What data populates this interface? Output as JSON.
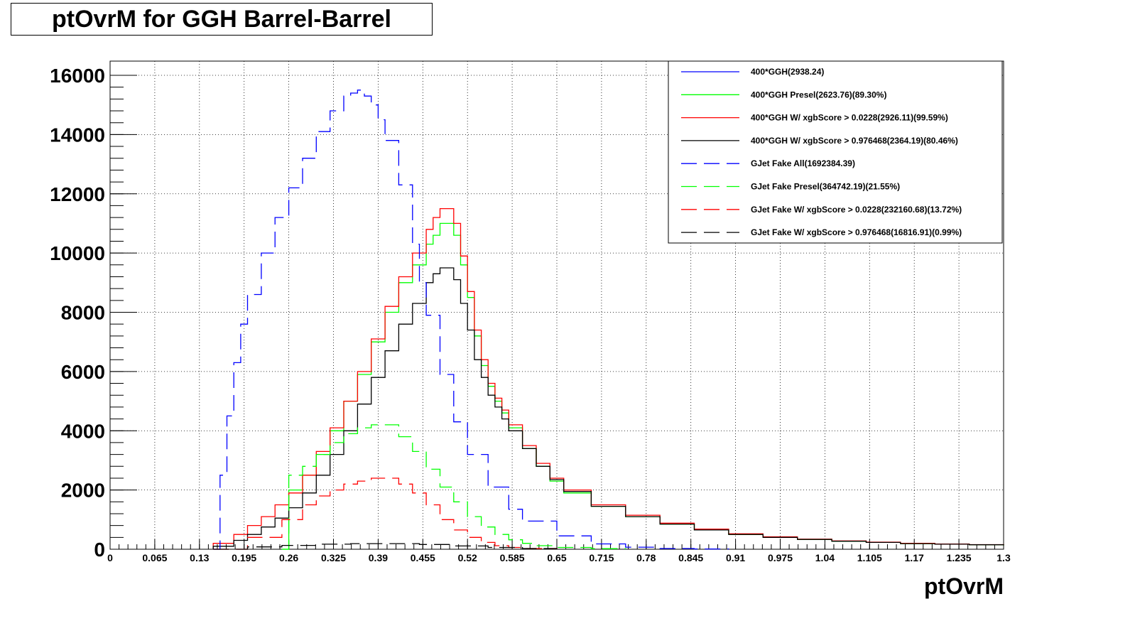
{
  "title": "ptOvrM for GGH Barrel-Barrel",
  "chart_data": {
    "type": "line",
    "title": "ptOvrM for GGH Barrel-Barrel",
    "xlabel": "ptOvrM",
    "ylabel": "",
    "xlim": [
      0,
      1.3
    ],
    "ylim": [
      0,
      16000
    ],
    "grid": true,
    "legend_position": "top-right",
    "x_ticks": [
      "0",
      "0.065",
      "0.13",
      "0.195",
      "0.26",
      "0.325",
      "0.39",
      "0.455",
      "0.52",
      "0.585",
      "0.65",
      "0.715",
      "0.78",
      "0.845",
      "0.91",
      "0.975",
      "1.04",
      "1.105",
      "1.17",
      "1.235",
      "1.3"
    ],
    "y_ticks": [
      "0",
      "2000",
      "4000",
      "6000",
      "8000",
      "10000",
      "12000",
      "14000",
      "16000"
    ],
    "series": [
      {
        "name": "400*GGH(2938.24)",
        "color": "#0000ff",
        "dash": "solid",
        "x": [
          0.15,
          0.2,
          0.25,
          0.3,
          0.35,
          0.4,
          0.45,
          0.5,
          0.55,
          0.6,
          0.65,
          0.7,
          0.8,
          0.9,
          1.0,
          1.1,
          1.2,
          1.3
        ],
        "y": [
          0,
          0,
          0,
          0,
          0,
          0,
          0,
          0,
          0,
          0,
          0,
          0,
          0,
          0,
          0,
          0,
          0,
          0
        ],
        "show_line": false
      },
      {
        "name": "400*GGH Presel(2623.76)(89.30%)",
        "color": "#00ff00",
        "dash": "solid",
        "x": [
          0.25,
          0.26,
          0.28,
          0.3,
          0.32,
          0.34,
          0.36,
          0.38,
          0.4,
          0.42,
          0.44,
          0.46,
          0.47,
          0.48,
          0.49,
          0.5,
          0.51,
          0.52,
          0.53,
          0.54,
          0.55,
          0.56,
          0.57,
          0.58,
          0.6,
          0.62,
          0.64,
          0.66,
          0.7,
          0.75,
          0.8,
          0.85,
          0.9,
          0.95,
          1.0,
          1.05,
          1.1,
          1.15,
          1.2,
          1.25,
          1.3
        ],
        "y": [
          0,
          2000,
          2500,
          3200,
          4000,
          5000,
          5900,
          7000,
          8000,
          9000,
          9600,
          10300,
          10600,
          11000,
          11000,
          10600,
          9600,
          8500,
          7200,
          6200,
          5500,
          5000,
          4600,
          4100,
          3400,
          2800,
          2300,
          1900,
          1450,
          1100,
          850,
          650,
          500,
          400,
          330,
          270,
          230,
          190,
          170,
          150,
          130
        ]
      },
      {
        "name": "400*GGH W/ xgbScore > 0.0228(2926.11)(99.59%)",
        "color": "#ff0000",
        "dash": "solid",
        "x": [
          0.15,
          0.18,
          0.2,
          0.22,
          0.24,
          0.26,
          0.28,
          0.3,
          0.32,
          0.34,
          0.36,
          0.38,
          0.4,
          0.42,
          0.44,
          0.46,
          0.47,
          0.48,
          0.49,
          0.5,
          0.51,
          0.52,
          0.53,
          0.54,
          0.55,
          0.56,
          0.57,
          0.58,
          0.6,
          0.62,
          0.64,
          0.66,
          0.7,
          0.75,
          0.8,
          0.85,
          0.9,
          0.95,
          1.0,
          1.05,
          1.1,
          1.15,
          1.2,
          1.25,
          1.3
        ],
        "y": [
          200,
          500,
          800,
          1100,
          1500,
          1900,
          2500,
          3300,
          4100,
          5000,
          6000,
          7100,
          8200,
          9200,
          10000,
          10800,
          11200,
          11500,
          11500,
          11000,
          9900,
          8700,
          7400,
          6400,
          5600,
          5100,
          4700,
          4200,
          3500,
          2900,
          2400,
          2000,
          1500,
          1150,
          880,
          680,
          520,
          420,
          340,
          280,
          240,
          200,
          175,
          155,
          135
        ]
      },
      {
        "name": "400*GGH W/ xgbScore > 0.976468(2364.19)(80.46%)",
        "color": "#000000",
        "dash": "solid",
        "x": [
          0.15,
          0.18,
          0.2,
          0.22,
          0.24,
          0.26,
          0.28,
          0.3,
          0.32,
          0.34,
          0.36,
          0.38,
          0.4,
          0.42,
          0.44,
          0.46,
          0.47,
          0.48,
          0.49,
          0.5,
          0.51,
          0.52,
          0.53,
          0.54,
          0.55,
          0.56,
          0.57,
          0.58,
          0.6,
          0.62,
          0.64,
          0.66,
          0.7,
          0.75,
          0.8,
          0.85,
          0.9,
          0.95,
          1.0,
          1.05,
          1.1,
          1.15,
          1.2,
          1.25,
          1.3
        ],
        "y": [
          100,
          300,
          500,
          750,
          1050,
          1400,
          1900,
          2500,
          3200,
          4000,
          4900,
          5800,
          6700,
          7600,
          8300,
          9000,
          9300,
          9500,
          9500,
          9100,
          8300,
          7400,
          6400,
          5800,
          5200,
          4800,
          4400,
          4000,
          3400,
          2800,
          2350,
          1950,
          1450,
          1100,
          850,
          650,
          500,
          400,
          330,
          270,
          230,
          190,
          170,
          150,
          130
        ]
      },
      {
        "name": "GJet Fake All(1692384.39)",
        "color": "#0000ff",
        "dash": "long",
        "x": [
          0.15,
          0.16,
          0.17,
          0.18,
          0.19,
          0.2,
          0.22,
          0.24,
          0.26,
          0.28,
          0.3,
          0.32,
          0.34,
          0.35,
          0.36,
          0.37,
          0.38,
          0.39,
          0.4,
          0.42,
          0.44,
          0.45,
          0.46,
          0.48,
          0.5,
          0.52,
          0.55,
          0.58,
          0.6,
          0.65,
          0.7,
          0.75,
          0.8,
          0.85,
          0.9
        ],
        "y": [
          0,
          2500,
          4500,
          6300,
          7600,
          8600,
          10000,
          11200,
          12200,
          13200,
          14100,
          14800,
          15300,
          15400,
          15500,
          15300,
          15000,
          14500,
          13800,
          12300,
          10300,
          9000,
          7900,
          5900,
          4300,
          3200,
          2100,
          1350,
          950,
          450,
          180,
          70,
          25,
          10,
          0
        ]
      },
      {
        "name": "GJet Fake Presel(364742.19)(21.55%)",
        "color": "#00ff00",
        "dash": "long",
        "x": [
          0.25,
          0.26,
          0.28,
          0.3,
          0.32,
          0.34,
          0.36,
          0.38,
          0.4,
          0.42,
          0.44,
          0.46,
          0.48,
          0.5,
          0.52,
          0.54,
          0.56,
          0.58,
          0.6,
          0.62,
          0.65,
          0.7,
          0.75
        ],
        "y": [
          0,
          2500,
          2800,
          3200,
          3600,
          3900,
          4100,
          4200,
          4200,
          3800,
          3300,
          2700,
          2100,
          1600,
          1100,
          750,
          500,
          320,
          200,
          120,
          60,
          20,
          0
        ]
      },
      {
        "name": "GJet Fake W/ xgbScore > 0.0228(232160.68)(13.72%)",
        "color": "#ff0000",
        "dash": "long",
        "x": [
          0.15,
          0.2,
          0.25,
          0.28,
          0.3,
          0.32,
          0.34,
          0.36,
          0.38,
          0.4,
          0.42,
          0.44,
          0.46,
          0.48,
          0.5,
          0.52,
          0.54,
          0.56,
          0.58,
          0.6,
          0.65
        ],
        "y": [
          0,
          400,
          1000,
          1500,
          1800,
          2000,
          2200,
          2300,
          2400,
          2400,
          2200,
          1900,
          1500,
          1000,
          650,
          400,
          230,
          120,
          60,
          25,
          0
        ]
      },
      {
        "name": "GJet Fake W/ xgbScore > 0.976468(16816.91)(0.99%)",
        "color": "#000000",
        "dash": "long",
        "x": [
          0.15,
          0.2,
          0.25,
          0.3,
          0.35,
          0.4,
          0.45,
          0.5,
          0.55,
          0.6,
          0.65
        ],
        "y": [
          0,
          80,
          130,
          170,
          190,
          190,
          160,
          110,
          60,
          25,
          0
        ]
      }
    ]
  }
}
